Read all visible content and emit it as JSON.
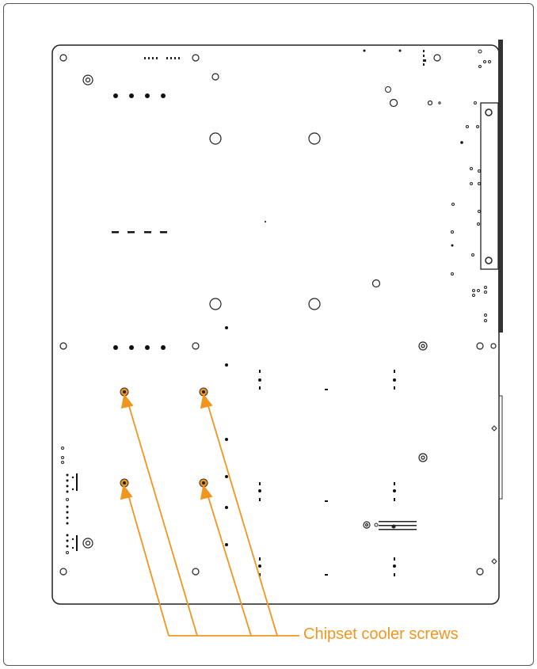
{
  "callout": {
    "label": "Chipset cooler screws",
    "color": "#f0961e"
  },
  "board": {
    "outline_color": "#222222",
    "highlight_color": "#f0961e"
  }
}
